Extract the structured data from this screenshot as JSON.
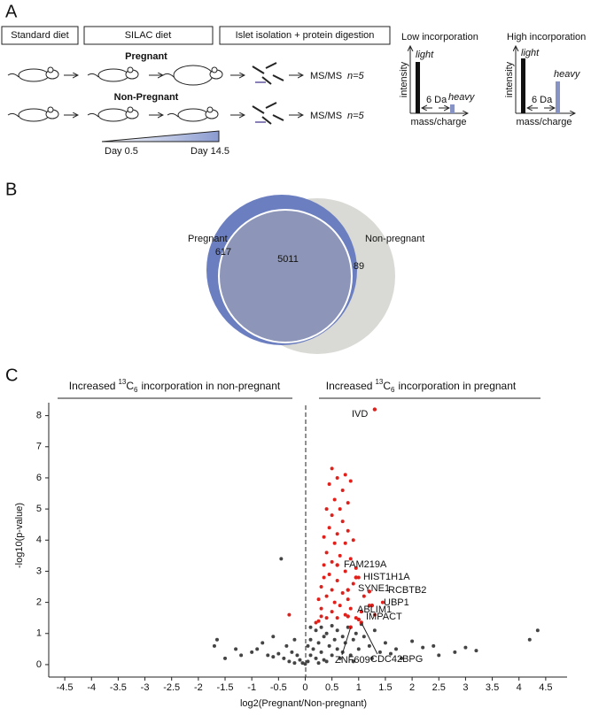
{
  "diagram": {
    "panel_labels": [
      "A",
      "B",
      "C"
    ],
    "steps": [
      "Standard diet",
      "SILAC diet",
      "Islet isolation + protein digestion"
    ],
    "groups": [
      {
        "label": "Pregnant",
        "readout": "MS/MS",
        "n": "n=5"
      },
      {
        "label": "Non-Pregnant",
        "readout": "MS/MS",
        "n": "n=5"
      }
    ],
    "timeline": [
      "Day 0.5",
      "Day 14.5"
    ],
    "spectra": [
      {
        "title": "Low incorporation",
        "light": "light",
        "heavy": "heavy",
        "shift": "6 Da",
        "y_axis": "intensity",
        "x_axis": "mass/charge"
      },
      {
        "title": "High incorporation",
        "light": "light",
        "heavy": "heavy",
        "shift": "6 Da",
        "y_axis": "intensity",
        "x_axis": "mass/charge"
      }
    ]
  },
  "chart_data": [
    {
      "type": "venn",
      "sets": [
        {
          "name": "Pregnant",
          "color": "#6b7ec0",
          "only": 617
        },
        {
          "name": "Non-pregnant",
          "color": "#d9d9d5",
          "only": 89
        }
      ],
      "overlap": 5011,
      "overlap_color": "#8d96b9"
    },
    {
      "type": "scatter",
      "xlabel": "log2(Pregnant/Non-pregnant)",
      "ylabel": "-log10(p-value)",
      "annotations": [
        {
          "parts": [
            "Increased",
            "13",
            "C",
            "6",
            "incorporation in non-pregnant"
          ]
        },
        {
          "parts": [
            "Increased",
            "13",
            "C",
            "6",
            "incorporation in pregnant"
          ]
        }
      ],
      "xlim": [
        -4.8,
        4.9
      ],
      "ylim": [
        -0.4,
        8.7
      ],
      "xticks": [
        -4.5,
        -4,
        -3.5,
        -3,
        -2.5,
        -2,
        -1.5,
        -1,
        -0.5,
        0,
        0.5,
        1,
        1.5,
        2,
        2.5,
        3,
        3.5,
        4,
        4.5
      ],
      "yticks": [
        0,
        1,
        2,
        3,
        4,
        5,
        6,
        7,
        8
      ],
      "series": [
        {
          "color": "#444444",
          "x": [
            -1.7,
            -1.65,
            -1.3,
            -1.2,
            -1.0,
            -0.9,
            -0.8,
            -0.7,
            -0.6,
            -0.5,
            -0.45,
            -0.4,
            -0.35,
            -0.3,
            -0.25,
            -0.2,
            -0.15,
            -0.1,
            -0.05,
            0,
            0.05,
            0.1,
            0.1,
            0.15,
            0.2,
            0.2,
            0.25,
            0.3,
            0.3,
            0.35,
            0.4,
            0.4,
            0.45,
            0.5,
            0.5,
            0.55,
            0.6,
            0.6,
            0.65,
            0.7,
            0.7,
            0.75,
            0.8,
            0.85,
            0.9,
            0.95,
            1.0,
            1.05,
            1.1,
            1.2,
            1.3,
            1.4,
            1.5,
            1.6,
            1.7,
            1.8,
            2.0,
            2.2,
            2.4,
            2.5,
            2.8,
            3.0,
            3.2,
            4.2,
            4.35,
            -0.2,
            0.1,
            0.05,
            0.25,
            0.35,
            -0.6,
            -1.5,
            0.9,
            1.25
          ],
          "values": [
            0.6,
            0.8,
            0.5,
            0.3,
            0.4,
            0.5,
            0.7,
            0.3,
            0.9,
            0.35,
            3.4,
            0.2,
            0.6,
            0.1,
            0.4,
            0.05,
            0.3,
            0.15,
            0.05,
            0.02,
            0.1,
            0.3,
            0.8,
            0.5,
            1.1,
            0.2,
            0.7,
            0.4,
            1.2,
            0.9,
            0.1,
            1.0,
            0.6,
            0.3,
            1.25,
            0.8,
            0.5,
            1.1,
            0.2,
            0.9,
            0.4,
            0.7,
            1.2,
            0.3,
            0.8,
            1.0,
            0.5,
            1.3,
            0.9,
            0.6,
            1.1,
            0.4,
            0.7,
            0.35,
            0.5,
            0.2,
            0.75,
            0.55,
            0.6,
            0.3,
            0.4,
            0.55,
            0.45,
            0.8,
            1.1,
            0.8,
            1.2,
            0.6,
            0.05,
            0.15,
            0.25,
            0.2,
            0.1,
            0.2
          ]
        },
        {
          "color": "#e0201b",
          "x": [
            0.25,
            0.3,
            0.3,
            0.35,
            0.35,
            0.4,
            0.4,
            0.4,
            0.4,
            0.45,
            0.45,
            0.45,
            0.5,
            0.5,
            0.5,
            0.5,
            0.5,
            0.55,
            0.55,
            0.55,
            0.6,
            0.6,
            0.6,
            0.6,
            0.65,
            0.65,
            0.65,
            0.7,
            0.7,
            0.7,
            0.75,
            0.75,
            0.75,
            0.8,
            0.8,
            0.8,
            0.85,
            0.85,
            0.9,
            0.9,
            0.95,
            0.95,
            1.0,
            1.05,
            1.1,
            1.2,
            1.3,
            1.45,
            0.2,
            0.25,
            0.3,
            0.85,
            0.75,
            0.35,
            -0.3
          ],
          "values": [
            1.4,
            1.8,
            2.5,
            3.2,
            4.1,
            1.5,
            2.2,
            3.6,
            5.0,
            2.9,
            4.4,
            5.8,
            1.7,
            2.4,
            3.3,
            4.8,
            6.3,
            2.0,
            3.9,
            5.3,
            1.5,
            2.7,
            4.2,
            6.0,
            1.9,
            3.5,
            5.0,
            2.3,
            4.6,
            5.6,
            1.6,
            3.0,
            3.9,
            2.1,
            4.3,
            5.2,
            1.8,
            3.4,
            2.6,
            4.0,
            1.5,
            3.1,
            2.8,
            1.7,
            2.2,
            1.9,
            1.6,
            2.0,
            1.35,
            2.1,
            1.55,
            5.9,
            6.1,
            2.8,
            1.6
          ]
        }
      ],
      "labeled_points": [
        {
          "label": "IVD",
          "x": 1.3,
          "y": 8.2
        },
        {
          "label": "FAM219A",
          "x": 0.6,
          "y": 3.2
        },
        {
          "label": "HIST1H1A",
          "x": 0.95,
          "y": 2.8
        },
        {
          "label": "SYNE1",
          "x": 0.8,
          "y": 2.4
        },
        {
          "label": "RCBTB2",
          "x": 1.2,
          "y": 2.35
        },
        {
          "label": "UBP1",
          "x": 1.25,
          "y": 1.9
        },
        {
          "label": "ABLIM1",
          "x": 0.8,
          "y": 1.55
        },
        {
          "label": "IMPACT",
          "x": 1.0,
          "y": 1.45
        },
        {
          "label": "ZNF609",
          "x": 0.85,
          "y": 1.2
        },
        {
          "label": "CDC42BPG",
          "x": 1.05,
          "y": 1.35
        }
      ],
      "label_color": "#e0201b"
    }
  ]
}
